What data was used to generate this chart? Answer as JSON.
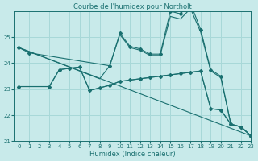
{
  "title": "Courbe de l'humidex pour Northolt",
  "xlabel": "Humidex (Indice chaleur)",
  "bg_color": "#c8eaea",
  "grid_color": "#a8d8d8",
  "line_color": "#1a7070",
  "xlim": [
    -0.5,
    23
  ],
  "ylim": [
    21,
    26.0
  ],
  "yticks": [
    21,
    22,
    23,
    24,
    25
  ],
  "xticks": [
    0,
    1,
    2,
    3,
    4,
    5,
    6,
    7,
    8,
    9,
    10,
    11,
    12,
    13,
    14,
    15,
    16,
    17,
    18,
    19,
    20,
    21,
    22,
    23
  ],
  "lines": [
    {
      "x": [
        0,
        1,
        9,
        10,
        11,
        12,
        13,
        14,
        15,
        16,
        17,
        18,
        19,
        20,
        21,
        22,
        23
      ],
      "y": [
        24.6,
        24.4,
        23.9,
        25.15,
        24.65,
        24.55,
        24.35,
        24.35,
        26.0,
        25.9,
        26.3,
        25.3,
        23.75,
        23.5,
        21.65,
        21.55,
        21.2
      ],
      "marker": true
    },
    {
      "x": [
        0,
        1,
        2,
        3,
        4,
        5,
        6,
        7,
        8,
        9,
        10,
        11,
        12,
        13,
        14,
        15,
        16,
        17,
        18,
        19,
        20,
        21,
        22,
        23
      ],
      "y": [
        24.6,
        24.45,
        24.3,
        24.15,
        24.0,
        23.85,
        23.7,
        23.55,
        23.4,
        23.9,
        25.1,
        24.6,
        24.5,
        24.3,
        24.3,
        25.8,
        25.7,
        26.1,
        25.2,
        23.7,
        23.45,
        21.65,
        21.55,
        21.2
      ],
      "marker": false
    },
    {
      "x": [
        0,
        23
      ],
      "y": [
        24.6,
        21.2
      ],
      "marker": false
    },
    {
      "x": [
        0,
        3,
        4,
        5,
        6,
        7,
        8,
        9,
        10,
        11,
        12,
        13,
        14,
        15,
        16,
        17,
        18,
        19,
        20,
        21,
        22,
        23
      ],
      "y": [
        23.1,
        23.1,
        23.75,
        23.8,
        23.85,
        22.95,
        23.05,
        23.15,
        23.3,
        23.35,
        23.4,
        23.45,
        23.5,
        23.55,
        23.6,
        23.65,
        23.7,
        22.25,
        22.2,
        21.65,
        21.55,
        21.2
      ],
      "marker": true
    },
    {
      "x": [
        0,
        3,
        4,
        5,
        6,
        7,
        8,
        9,
        10,
        11,
        12,
        13,
        14,
        15,
        16,
        17,
        18,
        19,
        20,
        21,
        22,
        23
      ],
      "y": [
        23.1,
        23.1,
        23.75,
        23.8,
        23.85,
        22.95,
        23.05,
        23.15,
        23.3,
        23.35,
        23.4,
        23.45,
        23.5,
        23.55,
        23.6,
        23.65,
        23.7,
        22.25,
        22.2,
        21.65,
        21.55,
        21.2
      ],
      "marker": false
    }
  ]
}
